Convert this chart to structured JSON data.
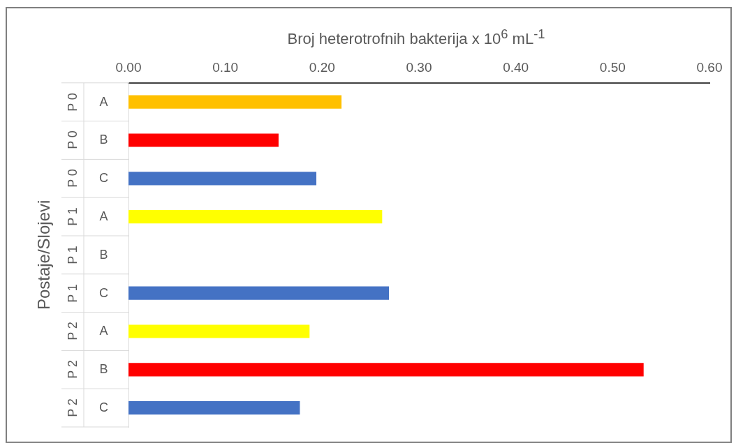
{
  "chart_data": {
    "type": "bar",
    "orientation": "horizontal",
    "xlabel": "Broj heterotrofnih bakterija x 10$^{6}$ mL$^{-1}$",
    "ylabel": "Postaje/Slojevi",
    "categories": [
      "P 0 A",
      "P 0 B",
      "P 0 C",
      "P 1 A",
      "P 1 B",
      "P 1 C",
      "P 2 A",
      "P 2 B",
      "P 2 C"
    ],
    "values": [
      0.22,
      0.155,
      0.194,
      0.262,
      null,
      0.269,
      0.187,
      0.532,
      0.177
    ],
    "colors": [
      "#ffc000",
      "#ff0000",
      "#4472c4",
      "#ffff00",
      "#ff0000",
      "#4472c4",
      "#ffff00",
      "#ff0000",
      "#4472c4"
    ],
    "xlim": [
      0,
      0.6
    ],
    "xticks": [
      {
        "value": 0,
        "label": "0.00"
      },
      {
        "value": 0.1,
        "label": "0.10"
      },
      {
        "value": 0.2,
        "label": "0.20"
      },
      {
        "value": 0.3,
        "label": "0.30"
      },
      {
        "value": 0.4,
        "label": "0.40"
      },
      {
        "value": 0.5,
        "label": "0.50"
      },
      {
        "value": 0.6,
        "label": "0.60"
      }
    ],
    "grid": false,
    "legend": false
  }
}
